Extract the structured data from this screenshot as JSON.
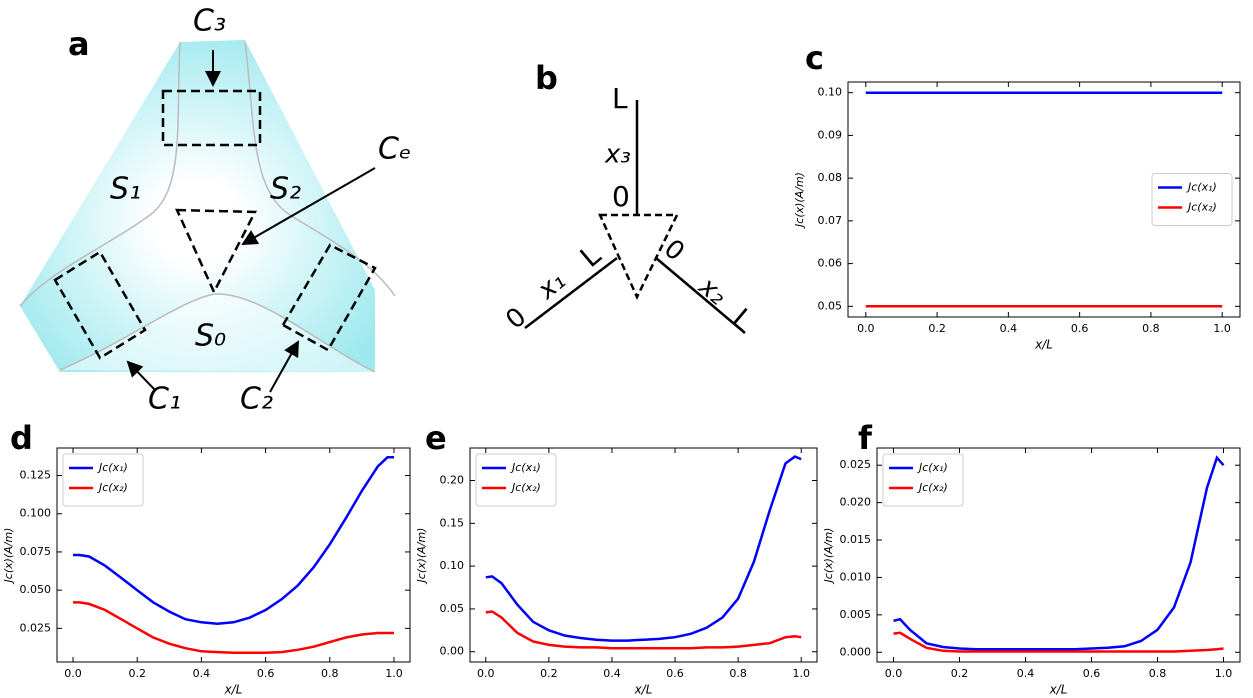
{
  "diagrams": {
    "a": {
      "panel": "a",
      "labels": [
        "C₃",
        "Cₑ",
        "S₁",
        "S₂",
        "S₀",
        "C₁",
        "C₂"
      ]
    },
    "b": {
      "panel": "b",
      "labels": [
        "L",
        "x₃",
        "0",
        "0",
        "x₁",
        "L",
        "0",
        "x₂",
        "L"
      ]
    }
  },
  "chart_data": [
    {
      "type": "line",
      "panel": "c",
      "xlabel": "x/L",
      "ylabel": "Jc(x)(A/m)",
      "legend": "center right",
      "x": [
        0,
        1
      ],
      "series": [
        {
          "name": "Jc(x₁)",
          "color": "#0000ff",
          "values": [
            0.1,
            0.1
          ]
        },
        {
          "name": "Jc(x₂)",
          "color": "#ff0000",
          "values": [
            0.05,
            0.05
          ]
        }
      ],
      "xlim": [
        -0.05,
        1.05
      ],
      "xticks": [
        {
          "value": 0,
          "label": "0.0"
        },
        0.2,
        0.4,
        0.6,
        0.8,
        {
          "value": 1,
          "label": "1.0"
        }
      ],
      "ylim": [
        0.0475,
        0.1025
      ],
      "yticks": [
        0.05,
        0.06,
        0.07,
        0.08,
        0.09,
        {
          "value": 0.1,
          "label": "0.10"
        }
      ]
    },
    {
      "type": "line",
      "panel": "d",
      "xlabel": "x/L",
      "ylabel": "Jc(x)(A/m)",
      "legend": "upper left",
      "x": [
        0,
        0.02,
        0.05,
        0.1,
        0.15,
        0.2,
        0.25,
        0.3,
        0.35,
        0.4,
        0.45,
        0.5,
        0.55,
        0.6,
        0.65,
        0.7,
        0.75,
        0.8,
        0.85,
        0.9,
        0.95,
        0.98,
        1
      ],
      "series": [
        {
          "name": "Jc(x₁)",
          "color": "#0000ff",
          "values": [
            0.073,
            0.073,
            0.072,
            0.066,
            0.058,
            0.05,
            0.042,
            0.036,
            0.031,
            0.029,
            0.028,
            0.029,
            0.032,
            0.037,
            0.044,
            0.053,
            0.065,
            0.08,
            0.097,
            0.115,
            0.131,
            0.137,
            0.137
          ]
        },
        {
          "name": "Jc(x₂)",
          "color": "#ff0000",
          "values": [
            0.042,
            0.042,
            0.041,
            0.037,
            0.031,
            0.025,
            0.019,
            0.015,
            0.012,
            0.01,
            0.0095,
            0.009,
            0.009,
            0.009,
            0.0095,
            0.011,
            0.013,
            0.016,
            0.019,
            0.021,
            0.022,
            0.022,
            0.022
          ]
        }
      ],
      "xlim": [
        -0.05,
        1.05
      ],
      "xticks": [
        {
          "value": 0,
          "label": "0.0"
        },
        0.2,
        0.4,
        0.6,
        0.8,
        {
          "value": 1,
          "label": "1.0"
        }
      ],
      "ylim": [
        0.003,
        0.143
      ],
      "yticks": [
        0.025,
        {
          "value": 0.05,
          "label": "0.050"
        },
        0.075,
        {
          "value": 0.1,
          "label": "0.100"
        },
        0.125
      ]
    },
    {
      "type": "line",
      "panel": "e",
      "xlabel": "x/L",
      "ylabel": "Jc(x)(A/m)",
      "legend": "upper left",
      "x": [
        0,
        0.02,
        0.05,
        0.1,
        0.15,
        0.2,
        0.25,
        0.3,
        0.35,
        0.4,
        0.45,
        0.5,
        0.55,
        0.6,
        0.65,
        0.7,
        0.75,
        0.8,
        0.85,
        0.9,
        0.95,
        0.98,
        1
      ],
      "series": [
        {
          "name": "Jc(x₁)",
          "color": "#0000ff",
          "values": [
            0.087,
            0.088,
            0.08,
            0.055,
            0.035,
            0.025,
            0.019,
            0.016,
            0.014,
            0.013,
            0.013,
            0.014,
            0.015,
            0.017,
            0.021,
            0.028,
            0.04,
            0.062,
            0.105,
            0.165,
            0.22,
            0.228,
            0.225
          ]
        },
        {
          "name": "Jc(x₂)",
          "color": "#ff0000",
          "values": [
            0.046,
            0.047,
            0.04,
            0.022,
            0.012,
            0.008,
            0.006,
            0.005,
            0.005,
            0.004,
            0.004,
            0.004,
            0.004,
            0.004,
            0.004,
            0.005,
            0.005,
            0.006,
            0.008,
            0.01,
            0.017,
            0.018,
            0.017
          ]
        }
      ],
      "xlim": [
        -0.05,
        1.05
      ],
      "xticks": [
        {
          "value": 0,
          "label": "0.0"
        },
        0.2,
        0.4,
        0.6,
        0.8,
        {
          "value": 1,
          "label": "1.0"
        }
      ],
      "ylim": [
        -0.012,
        0.238
      ],
      "yticks": [
        {
          "value": 0,
          "label": "0.00"
        },
        0.05,
        {
          "value": 0.1,
          "label": "0.10"
        },
        0.15,
        {
          "value": 0.2,
          "label": "0.20"
        }
      ]
    },
    {
      "type": "line",
      "panel": "f",
      "xlabel": "x/L",
      "ylabel": "Jc(x)(A/m)",
      "legend": "upper left",
      "x": [
        0,
        0.02,
        0.05,
        0.1,
        0.15,
        0.2,
        0.25,
        0.3,
        0.35,
        0.4,
        0.45,
        0.5,
        0.55,
        0.6,
        0.65,
        0.7,
        0.75,
        0.8,
        0.85,
        0.9,
        0.95,
        0.98,
        1
      ],
      "series": [
        {
          "name": "Jc(x₁)",
          "color": "#0000ff",
          "values": [
            0.0042,
            0.0044,
            0.003,
            0.0012,
            0.0007,
            0.0005,
            0.0004,
            0.0004,
            0.0004,
            0.0004,
            0.0004,
            0.0004,
            0.0004,
            0.0005,
            0.0006,
            0.0008,
            0.0015,
            0.003,
            0.006,
            0.012,
            0.022,
            0.026,
            0.025
          ]
        },
        {
          "name": "Jc(x₂)",
          "color": "#ff0000",
          "values": [
            0.0025,
            0.0026,
            0.0018,
            0.0006,
            0.0002,
            0.0001,
            0.0001,
            0.0001,
            0.0001,
            0.0001,
            0.0001,
            0.0001,
            0.0001,
            0.0001,
            0.0001,
            0.0001,
            0.0001,
            0.0001,
            0.0001,
            0.0002,
            0.0003,
            0.0004,
            0.0005
          ]
        }
      ],
      "xlim": [
        -0.05,
        1.05
      ],
      "xticks": [
        {
          "value": 0,
          "label": "0.0"
        },
        0.2,
        0.4,
        0.6,
        0.8,
        {
          "value": 1,
          "label": "1.0"
        }
      ],
      "ylim": [
        -0.0013,
        0.0273
      ],
      "yticks": [
        {
          "value": 0,
          "label": "0.000"
        },
        0.005,
        {
          "value": 0.01,
          "label": "0.010"
        },
        0.015,
        {
          "value": 0.02,
          "label": "0.020"
        },
        0.025
      ]
    }
  ]
}
